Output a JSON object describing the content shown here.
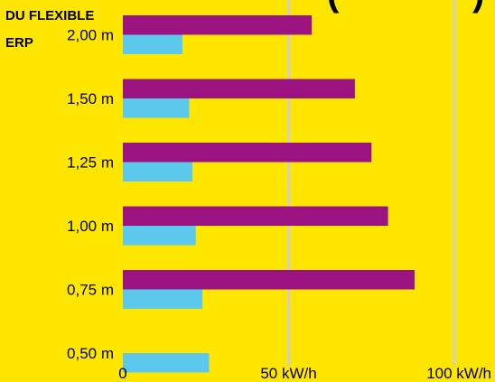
{
  "header": {
    "line1": "DU FLEXIBLE",
    "line2": "ERP",
    "top_fragment": "(",
    "top_fragment_right": ")"
  },
  "colors": {
    "background": "#FFE600",
    "purple": "#9B1380",
    "blue": "#5CC8EC",
    "grid": "#CFCFCF",
    "text": "#000000"
  },
  "chart_data": {
    "type": "bar",
    "orientation": "horizontal",
    "categories": [
      "2,00 m",
      "1,50 m",
      "1,25 m",
      "1,00 m",
      "0,75 m",
      "0,50 m"
    ],
    "series": [
      {
        "color": "#9B1380",
        "values": [
          57,
          70,
          75,
          80,
          88,
          null
        ]
      },
      {
        "color": "#5CC8EC",
        "values": [
          18,
          20,
          21,
          22,
          24,
          26
        ]
      }
    ],
    "x_ticks": [
      "0",
      "50 kW/h",
      "100 kW/h"
    ],
    "x_tick_values": [
      0,
      50,
      100
    ],
    "xlim": [
      0,
      100
    ],
    "grid": true
  }
}
